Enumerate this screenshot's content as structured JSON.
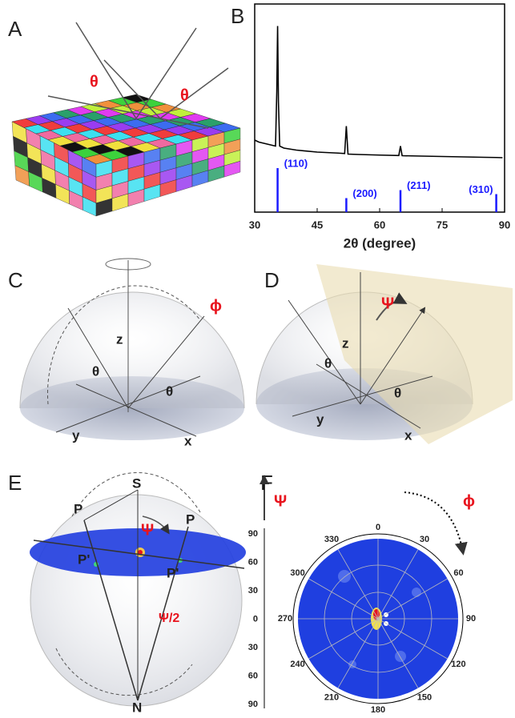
{
  "panels": {
    "a": "A",
    "b": "B",
    "c": "C",
    "d": "D",
    "e": "E",
    "f": "F"
  },
  "figure": {
    "a_theta_left": "θ",
    "a_theta_right": "θ",
    "c_phi": "ϕ",
    "c_z": "z",
    "c_theta_1": "θ",
    "c_theta_2": "θ",
    "c_y": "y",
    "c_x": "x",
    "d_psi": "Ψ",
    "d_z": "z",
    "d_theta_1": "θ",
    "d_theta_2": "θ",
    "d_y": "y",
    "d_x": "x",
    "e_s": "S",
    "e_p_left": "P",
    "e_p_right": "P",
    "e_p1_left": "P'",
    "e_p1_right": "P'",
    "e_psi": "Ψ",
    "e_psi_half": "Ψ/2",
    "e_n": "N",
    "f_psi": "Ψ",
    "f_phi": "ϕ",
    "f_psi_ticks": [
      "90",
      "60",
      "30",
      "0",
      "30",
      "60",
      "90"
    ],
    "f_phi_ticks": [
      "0",
      "30",
      "60",
      "90",
      "120",
      "150",
      "180",
      "210",
      "240",
      "270",
      "300",
      "330"
    ]
  },
  "chart_data": {
    "type": "line",
    "xlabel": "2θ (degree)",
    "xlim": [
      30,
      90
    ],
    "xticks": [
      30,
      45,
      60,
      75,
      90
    ],
    "ylim": [
      0,
      100
    ],
    "x": [
      30,
      31,
      32,
      33,
      34,
      35,
      35.3,
      35.5,
      35.7,
      36,
      37,
      40,
      45,
      50,
      51.6,
      52,
      52.4,
      55,
      60,
      64.6,
      65,
      65.4,
      70,
      75,
      80,
      85,
      88,
      89.5
    ],
    "series": [
      {
        "color": "#000000",
        "values": [
          36,
          35,
          34.5,
          34,
          33.5,
          33,
          60,
          93,
          55,
          33,
          32,
          31,
          30,
          29.5,
          29.3,
          43,
          29,
          28.8,
          28.5,
          28.3,
          33,
          28.2,
          28,
          27.8,
          27.6,
          27.4,
          27.3,
          27.2
        ]
      }
    ],
    "reference_peaks": {
      "color": "#1a1aff",
      "x": [
        35.5,
        52,
        65,
        88
      ],
      "values": [
        22,
        7,
        11,
        9
      ],
      "labels": [
        "(110)",
        "(200)",
        "(211)",
        "(310)"
      ]
    }
  }
}
